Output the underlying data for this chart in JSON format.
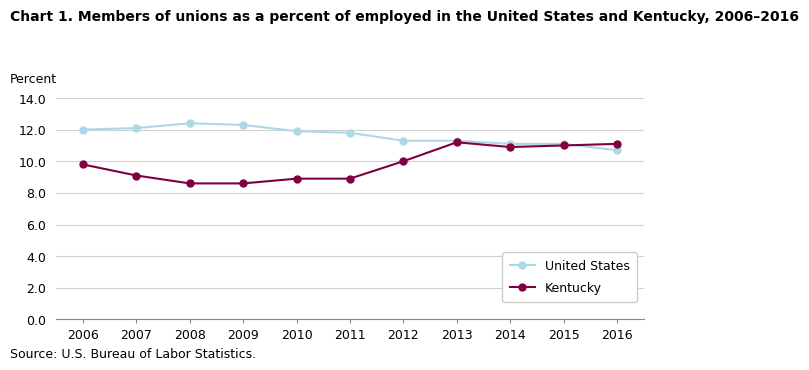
{
  "title": "Chart 1. Members of unions as a percent of employed in the United States and Kentucky, 2006–2016",
  "ylabel": "Percent",
  "source": "Source: U.S. Bureau of Labor Statistics.",
  "years": [
    2006,
    2007,
    2008,
    2009,
    2010,
    2011,
    2012,
    2013,
    2014,
    2015,
    2016
  ],
  "us_values": [
    12.0,
    12.1,
    12.4,
    12.3,
    11.9,
    11.8,
    11.3,
    11.3,
    11.1,
    11.1,
    10.7
  ],
  "ky_values": [
    9.8,
    9.1,
    8.6,
    8.6,
    8.9,
    8.9,
    10.0,
    11.2,
    10.9,
    11.0,
    11.1
  ],
  "us_color": "#add8e6",
  "ky_color": "#800040",
  "us_label": "United States",
  "ky_label": "Kentucky",
  "ylim": [
    0,
    14.0
  ],
  "yticks": [
    0.0,
    2.0,
    4.0,
    6.0,
    8.0,
    10.0,
    12.0,
    14.0
  ],
  "background_color": "#ffffff",
  "grid_color": "#d0d0d0",
  "title_fontsize": 10,
  "label_fontsize": 9,
  "tick_fontsize": 9,
  "legend_fontsize": 9,
  "marker_size": 5,
  "linewidth": 1.5
}
